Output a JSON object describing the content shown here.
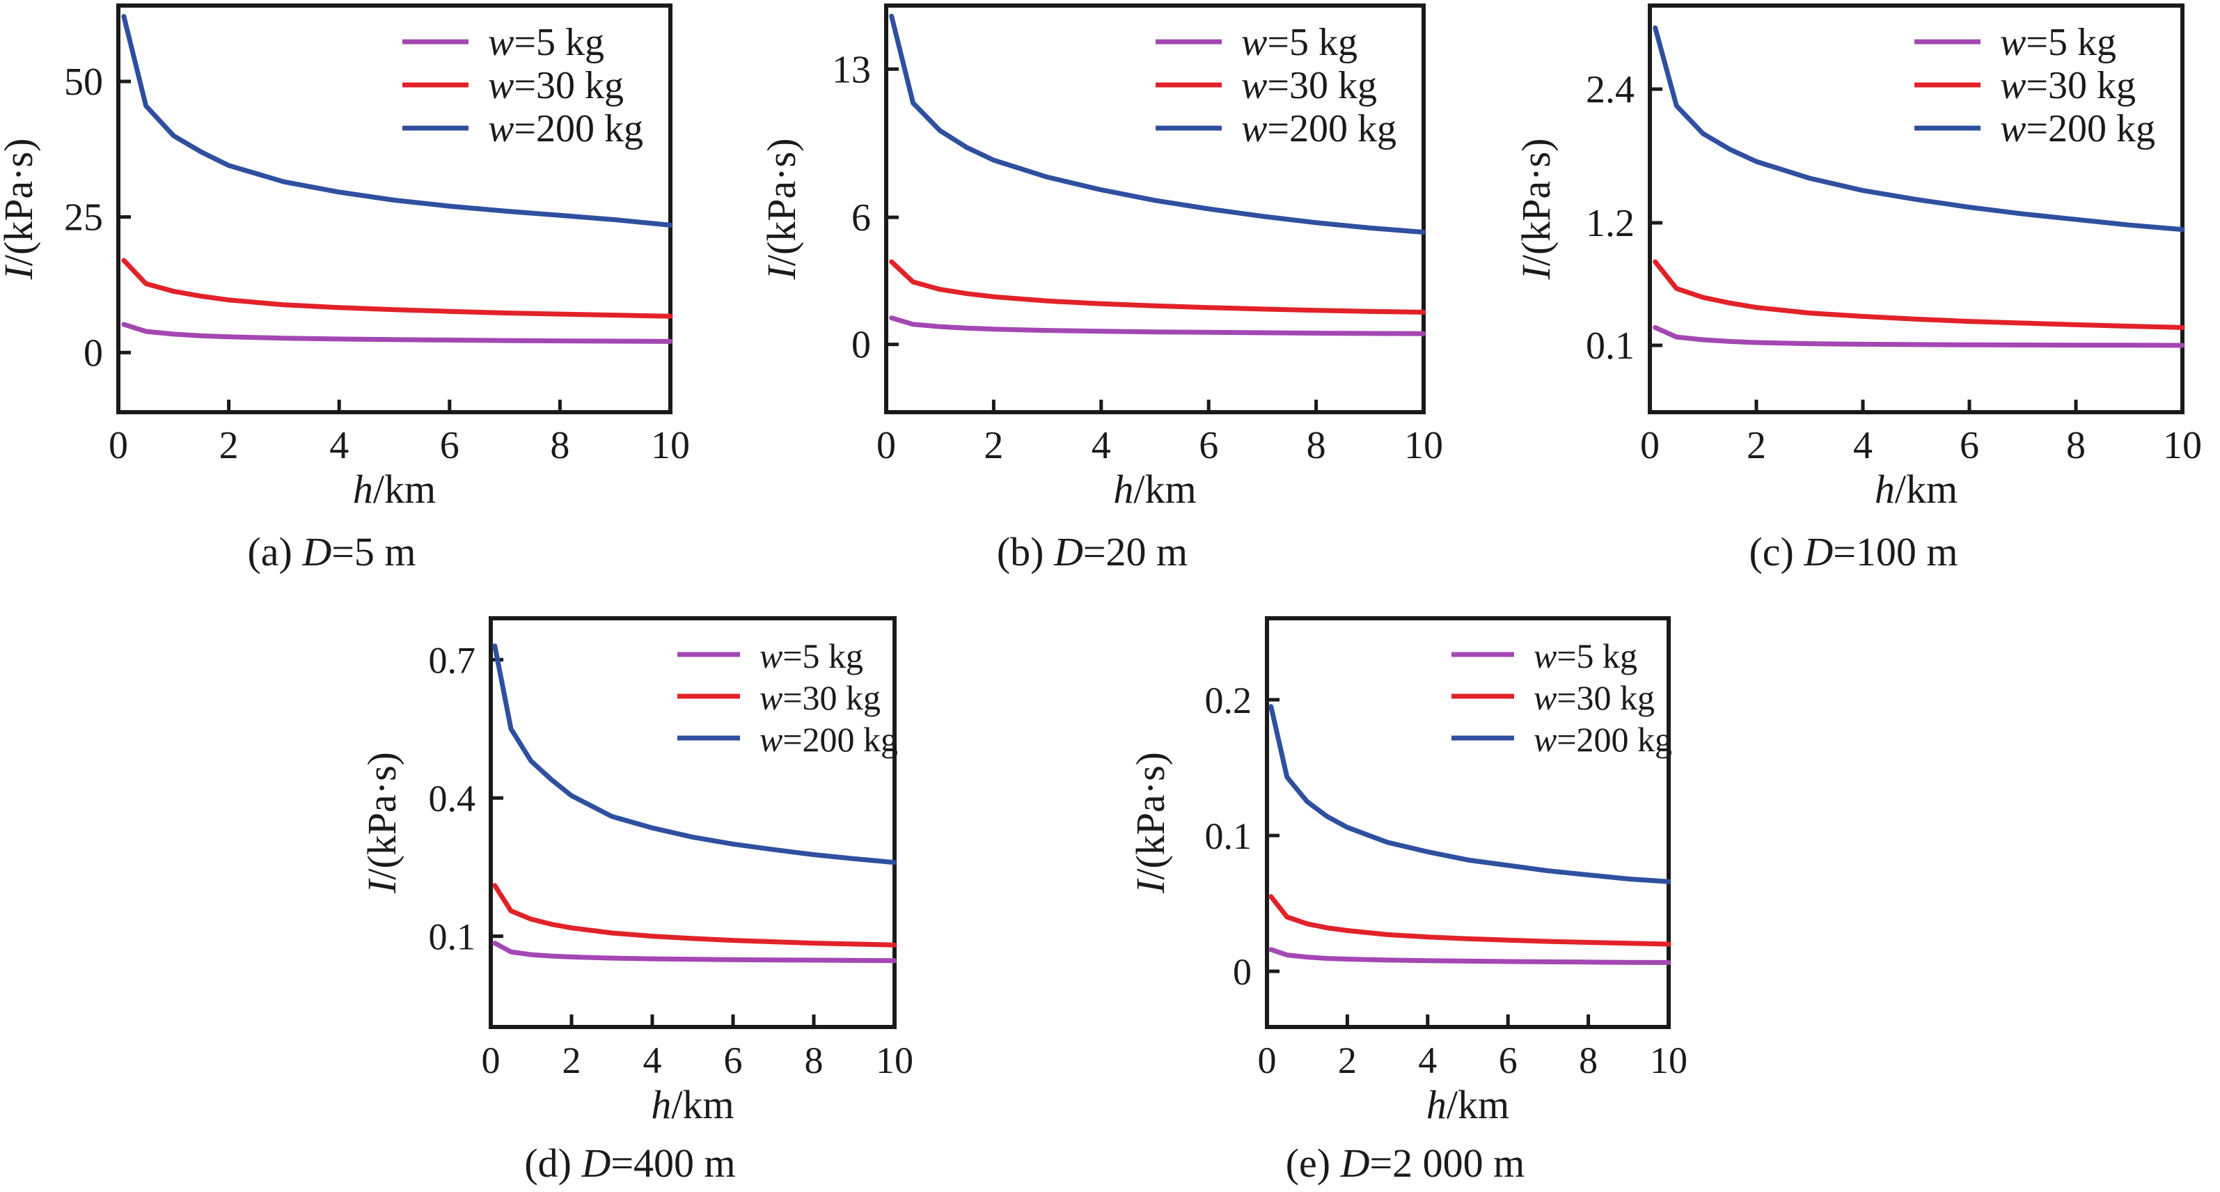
{
  "figure": {
    "background": "#ffffff",
    "text_color": "#1a1a1a",
    "series_colors": {
      "w5": "#a347b2",
      "w30": "#e22128",
      "w200": "#2f4f9f"
    }
  },
  "chart_data": [
    {
      "id": "a",
      "type": "line",
      "caption": "(a) D=5 m",
      "xlabel": "h/km",
      "ylabel": "I/(kPa·s)",
      "legend_position": "top-right",
      "grid": false,
      "xlim": [
        0,
        10
      ],
      "ylim": [
        -11,
        64
      ],
      "xticks": {
        "values": [
          0,
          2,
          4,
          6,
          8,
          10
        ],
        "labels": [
          "0",
          "2",
          "4",
          "6",
          "8",
          "10"
        ]
      },
      "yticks": {
        "values": [
          0,
          25,
          50
        ],
        "labels": [
          "0",
          "25",
          "50"
        ]
      },
      "x": [
        0.1,
        0.5,
        1,
        1.5,
        2,
        3,
        4,
        5,
        6,
        7,
        8,
        9,
        10
      ],
      "series": [
        {
          "name": "w=5 kg",
          "color": "#a347b2",
          "values": [
            5.2,
            3.9,
            3.4,
            3.1,
            2.9,
            2.65,
            2.5,
            2.4,
            2.3,
            2.22,
            2.15,
            2.1,
            2.05
          ]
        },
        {
          "name": "w=30 kg",
          "color": "#e22128",
          "values": [
            17,
            12.7,
            11.3,
            10.4,
            9.7,
            8.8,
            8.3,
            7.9,
            7.6,
            7.3,
            7.1,
            6.9,
            6.7
          ]
        },
        {
          "name": "w=200 kg",
          "color": "#2f4f9f",
          "values": [
            62,
            45.5,
            40,
            37,
            34.5,
            31.5,
            29.6,
            28.1,
            27,
            26.1,
            25.3,
            24.5,
            23.5
          ]
        }
      ]
    },
    {
      "id": "b",
      "type": "line",
      "caption": "(b) D=20 m",
      "xlabel": "h/km",
      "ylabel": "I/(kPa·s)",
      "legend_position": "top-right",
      "grid": false,
      "xlim": [
        0,
        10
      ],
      "ylim": [
        -3.2,
        16.0
      ],
      "xticks": {
        "values": [
          0,
          2,
          4,
          6,
          8,
          10
        ],
        "labels": [
          "0",
          "2",
          "4",
          "6",
          "8",
          "10"
        ]
      },
      "yticks": {
        "values": [
          0,
          6,
          13
        ],
        "labels": [
          "0",
          "6",
          "13"
        ]
      },
      "x": [
        0.1,
        0.5,
        1,
        1.5,
        2,
        3,
        4,
        5,
        6,
        7,
        8,
        9,
        10
      ],
      "series": [
        {
          "name": "w=5 kg",
          "color": "#a347b2",
          "values": [
            1.25,
            0.95,
            0.84,
            0.77,
            0.72,
            0.66,
            0.62,
            0.59,
            0.57,
            0.55,
            0.53,
            0.52,
            0.51
          ]
        },
        {
          "name": "w=30 kg",
          "color": "#e22128",
          "values": [
            3.9,
            2.95,
            2.6,
            2.4,
            2.25,
            2.05,
            1.92,
            1.82,
            1.74,
            1.67,
            1.61,
            1.56,
            1.52
          ]
        },
        {
          "name": "w=200 kg",
          "color": "#2f4f9f",
          "values": [
            15.5,
            11.4,
            10.1,
            9.3,
            8.7,
            7.9,
            7.3,
            6.8,
            6.4,
            6.05,
            5.75,
            5.5,
            5.3
          ]
        }
      ]
    },
    {
      "id": "c",
      "type": "line",
      "caption": "(c) D=100 m",
      "xlabel": "h/km",
      "ylabel": "I/(kPa·s)",
      "legend_position": "top-right",
      "grid": false,
      "xlim": [
        0,
        10
      ],
      "ylim": [
        -0.5,
        3.15
      ],
      "xticks": {
        "values": [
          0,
          2,
          4,
          6,
          8,
          10
        ],
        "labels": [
          "0",
          "2",
          "4",
          "6",
          "8",
          "10"
        ]
      },
      "yticks": {
        "values": [
          0.1,
          1.2,
          2.4
        ],
        "labels": [
          "0.1",
          "1.2",
          "2.4"
        ]
      },
      "x": [
        0.1,
        0.5,
        1,
        1.5,
        2,
        3,
        4,
        5,
        6,
        7,
        8,
        9,
        10
      ],
      "series": [
        {
          "name": "w=5 kg",
          "color": "#a347b2",
          "values": [
            0.26,
            0.175,
            0.15,
            0.135,
            0.125,
            0.115,
            0.11,
            0.107,
            0.105,
            0.103,
            0.102,
            0.101,
            0.1
          ]
        },
        {
          "name": "w=30 kg",
          "color": "#e22128",
          "values": [
            0.85,
            0.61,
            0.53,
            0.48,
            0.44,
            0.39,
            0.36,
            0.335,
            0.315,
            0.3,
            0.285,
            0.272,
            0.26
          ]
        },
        {
          "name": "w=200 kg",
          "color": "#2f4f9f",
          "values": [
            2.95,
            2.25,
            2.0,
            1.86,
            1.75,
            1.6,
            1.49,
            1.41,
            1.34,
            1.28,
            1.23,
            1.18,
            1.14
          ]
        }
      ]
    },
    {
      "id": "d",
      "type": "line",
      "caption": "(d) D=400 m",
      "xlabel": "h/km",
      "ylabel": "I/(kPa·s)",
      "legend_position": "top-right",
      "grid": false,
      "xlim": [
        0,
        10
      ],
      "ylim": [
        -0.097,
        0.79
      ],
      "xticks": {
        "values": [
          0,
          2,
          4,
          6,
          8,
          10
        ],
        "labels": [
          "0",
          "2",
          "4",
          "6",
          "8",
          "10"
        ]
      },
      "yticks": {
        "values": [
          0.1,
          0.4,
          0.7
        ],
        "labels": [
          "0.1",
          "0.4",
          "0.7"
        ]
      },
      "x": [
        0.1,
        0.5,
        1,
        1.5,
        2,
        3,
        4,
        5,
        6,
        7,
        8,
        9,
        10
      ],
      "series": [
        {
          "name": "w=5 kg",
          "color": "#a347b2",
          "values": [
            0.085,
            0.066,
            0.06,
            0.057,
            0.055,
            0.0525,
            0.051,
            0.05,
            0.049,
            0.0485,
            0.048,
            0.0475,
            0.047
          ]
        },
        {
          "name": "w=30 kg",
          "color": "#e22128",
          "values": [
            0.21,
            0.155,
            0.137,
            0.126,
            0.118,
            0.107,
            0.1,
            0.095,
            0.091,
            0.088,
            0.085,
            0.083,
            0.081
          ]
        },
        {
          "name": "w=200 kg",
          "color": "#2f4f9f",
          "values": [
            0.73,
            0.55,
            0.48,
            0.44,
            0.405,
            0.36,
            0.335,
            0.315,
            0.3,
            0.288,
            0.277,
            0.268,
            0.26
          ]
        }
      ]
    },
    {
      "id": "e",
      "type": "line",
      "caption": "(e) D=2 000 m",
      "xlabel": "h/km",
      "ylabel": "I/(kPa·s)",
      "legend_position": "top-right",
      "grid": false,
      "xlim": [
        0,
        10
      ],
      "ylim": [
        -0.041,
        0.26
      ],
      "xticks": {
        "values": [
          0,
          2,
          4,
          6,
          8,
          10
        ],
        "labels": [
          "0",
          "2",
          "4",
          "6",
          "8",
          "10"
        ]
      },
      "yticks": {
        "values": [
          0,
          0.1,
          0.2
        ],
        "labels": [
          "0",
          "0.1",
          "0.2"
        ]
      },
      "x": [
        0.1,
        0.5,
        1,
        1.5,
        2,
        3,
        4,
        5,
        6,
        7,
        8,
        9,
        10
      ],
      "series": [
        {
          "name": "w=5 kg",
          "color": "#a347b2",
          "values": [
            0.016,
            0.012,
            0.0105,
            0.0095,
            0.009,
            0.0083,
            0.0078,
            0.0075,
            0.0072,
            0.007,
            0.0068,
            0.0066,
            0.0065
          ]
        },
        {
          "name": "w=30 kg",
          "color": "#e22128",
          "values": [
            0.055,
            0.04,
            0.035,
            0.032,
            0.03,
            0.027,
            0.0253,
            0.024,
            0.023,
            0.022,
            0.0213,
            0.0207,
            0.02
          ]
        },
        {
          "name": "w=200 kg",
          "color": "#2f4f9f",
          "values": [
            0.195,
            0.143,
            0.125,
            0.114,
            0.106,
            0.095,
            0.088,
            0.082,
            0.078,
            0.074,
            0.071,
            0.068,
            0.066
          ]
        }
      ]
    }
  ]
}
